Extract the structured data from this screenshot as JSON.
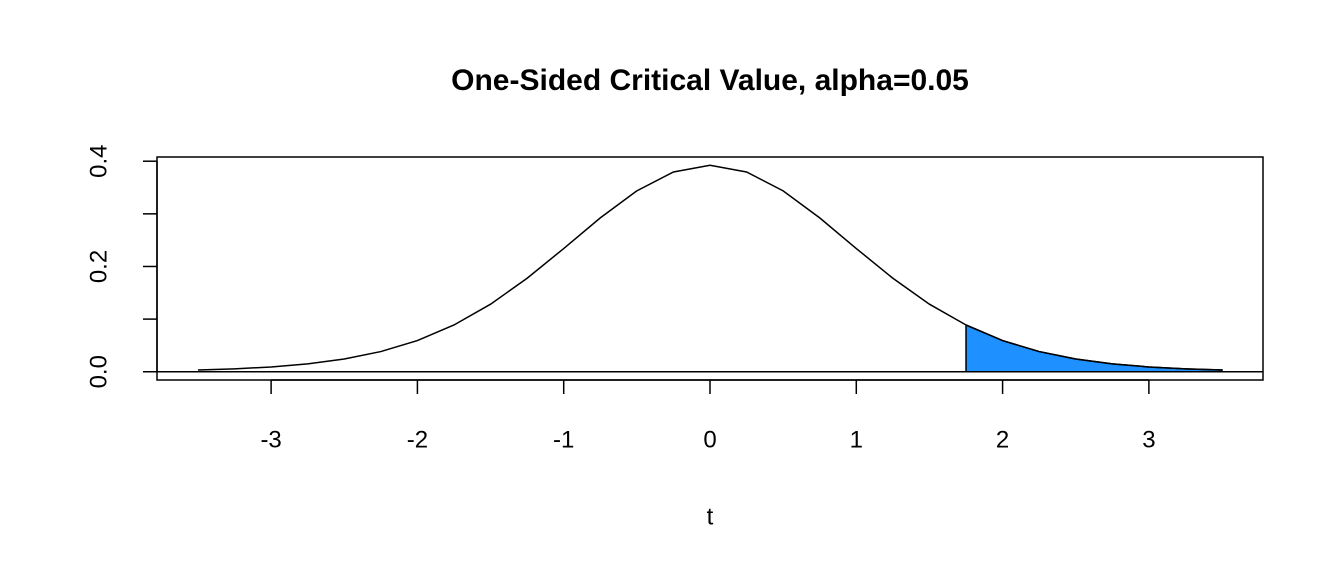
{
  "chart_data": {
    "type": "line",
    "title": "One-Sided Critical Value, alpha=0.05",
    "xlabel": "t",
    "x": [
      -3.5,
      -3.25,
      -3,
      -2.75,
      -2.5,
      -2.25,
      -2,
      -1.75,
      -1.5,
      -1.25,
      -1,
      -0.75,
      -0.5,
      -0.25,
      0,
      0.25,
      0.5,
      0.75,
      1,
      1.25,
      1.5,
      1.75,
      2,
      2.25,
      2.5,
      2.75,
      3,
      3.25,
      3.5
    ],
    "series": [
      {
        "color": "#000000",
        "values": [
          0.0033,
          0.0055,
          0.0091,
          0.015,
          0.0242,
          0.0383,
          0.0592,
          0.0888,
          0.1283,
          0.1776,
          0.2341,
          0.2923,
          0.3437,
          0.3795,
          0.3924,
          0.3795,
          0.3437,
          0.2923,
          0.2341,
          0.1776,
          0.1283,
          0.0888,
          0.0592,
          0.0383,
          0.0242,
          0.015,
          0.0091,
          0.0055,
          0.0033
        ]
      },
      {
        "color": "#1e90ff",
        "fill": true,
        "x": [
          1.75,
          2,
          2.25,
          2.5,
          2.75,
          3,
          3.25,
          3.5
        ],
        "values": [
          0.0888,
          0.0592,
          0.0383,
          0.0242,
          0.015,
          0.0091,
          0.0055,
          0.0033
        ]
      }
    ],
    "xlim": [
      -3.78,
      3.78
    ],
    "ylim": [
      -0.0157,
      0.408
    ],
    "xticks": [
      -3,
      -2,
      -1,
      0,
      1,
      2,
      3
    ],
    "yticks": [
      {
        "value": 0,
        "label": "0.0"
      },
      {
        "value": 0.2,
        "label": "0.2"
      },
      {
        "value": 0.4,
        "label": "0.4"
      }
    ],
    "yminor_ticks": [
      0.1,
      0.3
    ],
    "hline": 0
  }
}
